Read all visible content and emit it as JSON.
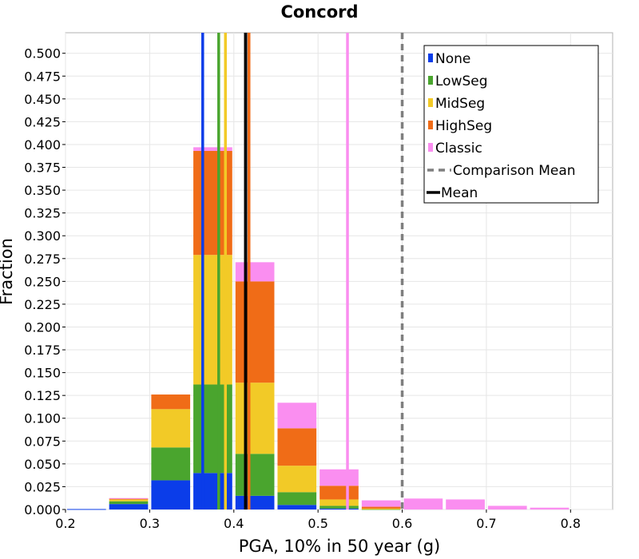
{
  "chart_data": {
    "type": "bar",
    "stacked": true,
    "title": "Concord",
    "xlabel": "PGA, 10% in 50 year (g)",
    "ylabel": "Fraction",
    "xlim": [
      0.2,
      0.85
    ],
    "ylim": [
      0,
      0.5225
    ],
    "grid": true,
    "legend_position": "top-right",
    "x_ticks": [
      "0.2",
      "0.3",
      "0.4",
      "0.5",
      "0.6",
      "0.7",
      "0.8"
    ],
    "x_tick_values": [
      0.2,
      0.3,
      0.4,
      0.5,
      0.6,
      0.7,
      0.8
    ],
    "y_ticks": [
      "0.000",
      "0.025",
      "0.050",
      "0.075",
      "0.100",
      "0.125",
      "0.150",
      "0.175",
      "0.200",
      "0.225",
      "0.250",
      "0.275",
      "0.300",
      "0.325",
      "0.350",
      "0.375",
      "0.400",
      "0.425",
      "0.450",
      "0.475",
      "0.500"
    ],
    "y_tick_values": [
      0,
      0.025,
      0.05,
      0.075,
      0.1,
      0.125,
      0.15,
      0.175,
      0.2,
      0.225,
      0.25,
      0.275,
      0.3,
      0.325,
      0.35,
      0.375,
      0.4,
      0.425,
      0.45,
      0.475,
      0.5
    ],
    "bin_width": 0.05,
    "x": [
      0.225,
      0.275,
      0.325,
      0.375,
      0.425,
      0.475,
      0.525,
      0.575,
      0.625,
      0.675,
      0.725,
      0.775
    ],
    "series": [
      {
        "name": "None",
        "color": "#0b3de9",
        "values": [
          0.0005,
          0.006,
          0.032,
          0.04,
          0.015,
          0.005,
          0.001,
          0,
          0,
          0,
          0,
          0
        ]
      },
      {
        "name": "LowSeg",
        "color": "#4aa52e",
        "values": [
          0,
          0.003,
          0.036,
          0.097,
          0.046,
          0.014,
          0.003,
          0.0005,
          0,
          0,
          0,
          0
        ]
      },
      {
        "name": "MidSeg",
        "color": "#f2ca27",
        "values": [
          0,
          0.002,
          0.042,
          0.142,
          0.078,
          0.029,
          0.007,
          0.0005,
          0,
          0,
          0,
          0
        ]
      },
      {
        "name": "HighSeg",
        "color": "#f06c17",
        "values": [
          0,
          0.001,
          0.016,
          0.114,
          0.111,
          0.041,
          0.015,
          0.002,
          0,
          0,
          0,
          0
        ]
      },
      {
        "name": "Classic",
        "color": "#fa8ef0",
        "values": [
          0,
          0.0005,
          0,
          0.004,
          0.021,
          0.028,
          0.018,
          0.007,
          0.012,
          0.011,
          0.004,
          0.002
        ]
      }
    ],
    "vlines": [
      {
        "name": "None",
        "x": 0.363,
        "color": "#0b3de9",
        "style": "solid"
      },
      {
        "name": "LowSeg",
        "x": 0.382,
        "color": "#4aa52e",
        "style": "solid"
      },
      {
        "name": "MidSeg",
        "x": 0.39,
        "color": "#f2ca27",
        "style": "solid"
      },
      {
        "name": "HighSeg",
        "x": 0.418,
        "color": "#f06c17",
        "style": "solid"
      },
      {
        "name": "Classic",
        "x": 0.535,
        "color": "#fa8ef0",
        "style": "solid"
      },
      {
        "name": "Comparison Mean",
        "x": 0.6,
        "color": "#7f7f7f",
        "style": "dashed"
      },
      {
        "name": "Mean",
        "x": 0.414,
        "color": "#000000",
        "style": "solid"
      }
    ],
    "legend": [
      {
        "label": "None",
        "color": "#0b3de9",
        "marker": "square"
      },
      {
        "label": "LowSeg",
        "color": "#4aa52e",
        "marker": "square"
      },
      {
        "label": "MidSeg",
        "color": "#f2ca27",
        "marker": "square"
      },
      {
        "label": "HighSeg",
        "color": "#f06c17",
        "marker": "square"
      },
      {
        "label": "Classic",
        "color": "#fa8ef0",
        "marker": "square"
      },
      {
        "label": "Comparison Mean",
        "color": "#7f7f7f",
        "marker": "dashed-line"
      },
      {
        "label": "Mean",
        "color": "#000000",
        "marker": "solid-line"
      }
    ]
  }
}
